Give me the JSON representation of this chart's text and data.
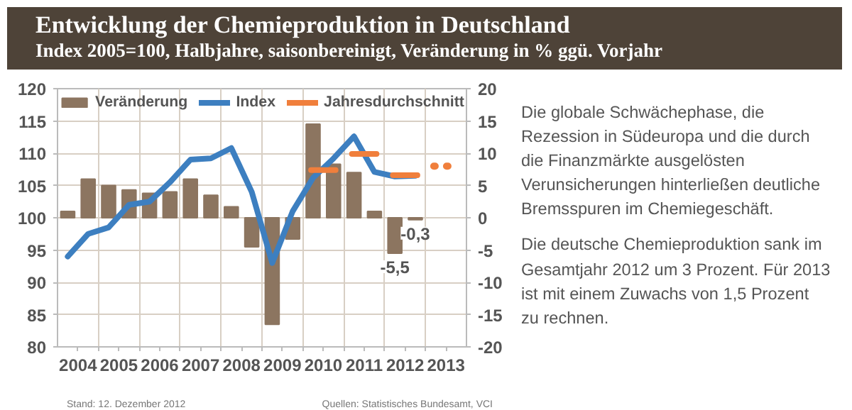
{
  "chart_data": {
    "type": "bar",
    "title": "Entwicklung der Chemieproduktion in Deutschland",
    "subtitle": "Index 2005=100, Halbjahre, saisonbereinigt, Veränderung in % ggü. Vorjahr",
    "xlim": [
      2004,
      2014
    ],
    "xticks": [
      {
        "value": 2004.5,
        "label": "2004"
      },
      {
        "value": 2005.5,
        "label": "2005"
      },
      {
        "value": 2006.5,
        "label": "2006"
      },
      {
        "value": 2007.5,
        "label": "2007"
      },
      {
        "value": 2008.5,
        "label": "2008"
      },
      {
        "value": 2009.5,
        "label": "2009"
      },
      {
        "value": 2010.5,
        "label": "2010"
      },
      {
        "value": 2011.5,
        "label": "2011"
      },
      {
        "value": 2012.5,
        "label": "2012"
      },
      {
        "value": 2013.5,
        "label": "2013"
      },
      {
        "value": 2005,
        "label": null
      },
      {
        "value": 2006,
        "label": null
      },
      {
        "value": 2007,
        "label": null
      },
      {
        "value": 2008,
        "label": null
      },
      {
        "value": 2009,
        "label": null
      },
      {
        "value": 2010,
        "label": null
      },
      {
        "value": 2011,
        "label": null
      },
      {
        "value": 2012,
        "label": null
      },
      {
        "value": 2013,
        "label": null
      }
    ],
    "ylim": [
      80,
      120
    ],
    "yticks": [
      80,
      85,
      90,
      95,
      100,
      105,
      110,
      115,
      120
    ],
    "y2lim": [
      -20,
      20
    ],
    "y2ticks": [
      -20,
      -15,
      -10,
      -5,
      0,
      5,
      10,
      15,
      20
    ],
    "grid": true,
    "legend": "top",
    "series": [
      {
        "name": "Veränderung",
        "axis": "y2",
        "color": "#8c7560",
        "x": [
          2004.25,
          2004.75,
          2005.25,
          2005.75,
          2006.25,
          2006.75,
          2007.25,
          2007.75,
          2008.25,
          2008.75,
          2009.25,
          2009.75,
          2010.25,
          2010.75,
          2011.25,
          2011.75,
          2012.25,
          2012.75
        ],
        "values": [
          1,
          6,
          5,
          4.3,
          3.8,
          4,
          6,
          3.5,
          1.7,
          -4.5,
          -16.5,
          -3.3,
          14.5,
          8.3,
          7,
          1,
          -5.5,
          -0.3
        ],
        "value_labels": [
          null,
          null,
          null,
          null,
          null,
          null,
          null,
          null,
          null,
          null,
          null,
          null,
          null,
          null,
          null,
          null,
          "-5,5",
          "-0,3"
        ]
      },
      {
        "name": "Index",
        "type": "line",
        "color": "#3d7fc0",
        "x": [
          2004.25,
          2004.75,
          2005.25,
          2005.75,
          2006.25,
          2006.75,
          2007.25,
          2007.75,
          2008.25,
          2008.75,
          2009.25,
          2009.75,
          2010.25,
          2010.75,
          2011.25,
          2011.75,
          2012.25,
          2012.75
        ],
        "values": [
          94,
          97.5,
          98.5,
          102,
          102.5,
          105.5,
          109,
          109.2,
          110.8,
          104,
          93,
          101,
          106.2,
          109.2,
          112.6,
          107.1,
          106.4,
          106.5
        ]
      },
      {
        "name": "Jahresdurchschnitt",
        "type": "line",
        "color": "#f07f3c",
        "x": [
          2010.2,
          2010.8,
          2011,
          2011.2,
          2011.8,
          2012,
          2012.2,
          2012.8
        ],
        "values": [
          107.4,
          107.4,
          null,
          109.9,
          109.9,
          null,
          106.6,
          106.6
        ]
      },
      {
        "type": "line",
        "line_style": "dotted",
        "color": "#f07f3c",
        "x": [
          2013.2,
          2013.8
        ],
        "values": [
          108,
          108
        ]
      }
    ],
    "annotations": [
      "Die globale Schwächephase, die Rezession in Südeuropa und die durch die Finanzmärkte ausgelösten Verunsicherungen hinterließen deutliche Bremsspuren im Chemiegeschäft.",
      "Die deutsche Chemieproduktion sank im Gesamtjahr 2012 um 3 Prozent. Für 2013 ist mit einem Zuwachs von 1,5 Prozent zu rechnen.",
      "Stand: 12. Dezember 2012",
      "Quellen: Statistisches Bundesamt, VCI"
    ]
  }
}
